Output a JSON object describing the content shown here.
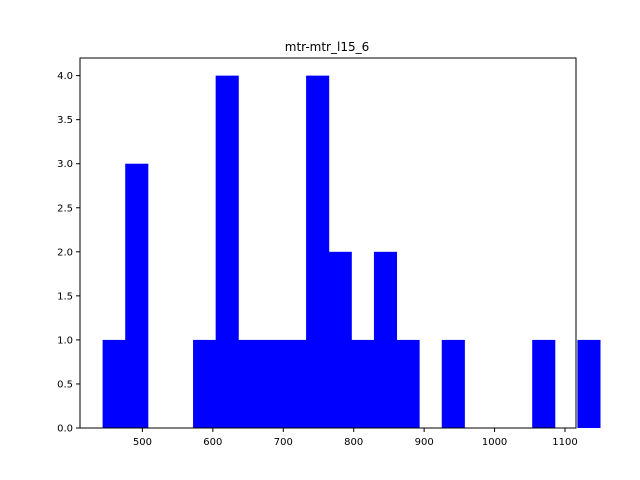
{
  "chart_data": {
    "type": "bar",
    "title": "mtr-mtr_l15_6",
    "xlabel": "",
    "ylabel": "",
    "bar_color": "#0000ff",
    "bin_start": 443.5,
    "bin_width": 32.1,
    "counts": [
      1,
      3,
      0,
      0,
      1,
      4,
      1,
      1,
      1,
      4,
      2,
      1,
      2,
      1,
      0,
      1,
      0,
      0,
      0,
      1,
      0,
      1
    ],
    "xlim": [
      411.4,
      1115.6
    ],
    "ylim": [
      0,
      4.2
    ],
    "x_ticks": [
      500,
      600,
      700,
      800,
      900,
      1000,
      1100
    ],
    "x_tick_labels": [
      "500",
      "600",
      "700",
      "800",
      "900",
      "1000",
      "1100"
    ],
    "y_ticks": [
      0,
      0.5,
      1,
      1.5,
      2,
      2.5,
      3,
      3.5,
      4
    ],
    "y_tick_labels": [
      "0.0",
      "0.5",
      "1.0",
      "1.5",
      "2.0",
      "2.5",
      "3.0",
      "3.5",
      "4.0"
    ],
    "grid": false,
    "legend": "none"
  }
}
